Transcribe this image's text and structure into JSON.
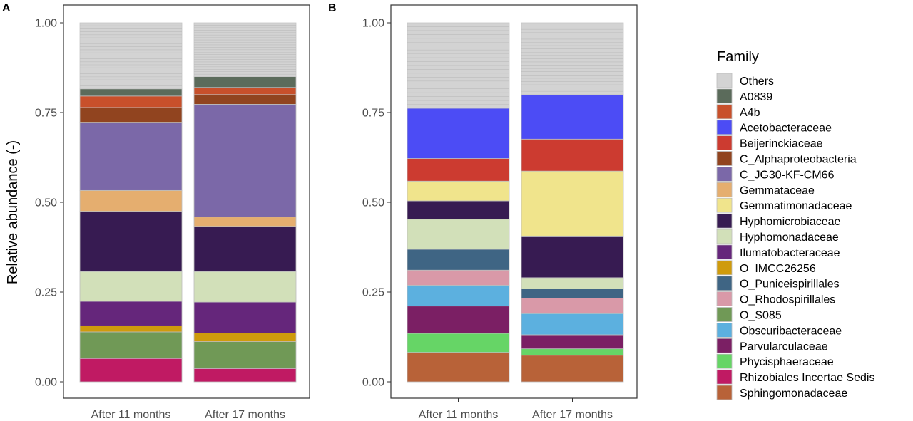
{
  "panels": [
    {
      "letter": "A"
    },
    {
      "letter": "B"
    }
  ],
  "legend": {
    "title": "Family",
    "entries": [
      {
        "label": "Others",
        "color": "#d3d3d3"
      },
      {
        "label": "A0839",
        "color": "#5b6b5b"
      },
      {
        "label": "A4b",
        "color": "#c8502b"
      },
      {
        "label": "Acetobacteraceae",
        "color": "#4c4cf5"
      },
      {
        "label": "Beijerinckiaceae",
        "color": "#cc3b30"
      },
      {
        "label": "C_Alphaproteobacteria",
        "color": "#91441f"
      },
      {
        "label": "C_JG30-KF-CM66",
        "color": "#7b68a8"
      },
      {
        "label": "Gemmataceae",
        "color": "#e5ae6f"
      },
      {
        "label": "Gemmatimonadaceae",
        "color": "#f0e48c"
      },
      {
        "label": "Hyphomicrobiaceae",
        "color": "#371b52"
      },
      {
        "label": "Hyphomonadaceae",
        "color": "#d2e0b9"
      },
      {
        "label": "Ilumatobacteraceae",
        "color": "#65267b"
      },
      {
        "label": "O_IMCC26256",
        "color": "#cf9b0c"
      },
      {
        "label": "O_Puniceispirillales",
        "color": "#3f6584"
      },
      {
        "label": "O_Rhodospirillales",
        "color": "#d999a8"
      },
      {
        "label": "O_S085",
        "color": "#709956"
      },
      {
        "label": "Obscuribacteraceae",
        "color": "#5cb0df"
      },
      {
        "label": "Parvularculaceae",
        "color": "#7b1f64"
      },
      {
        "label": "Phycisphaeraceae",
        "color": "#66d566"
      },
      {
        "label": "Rhizobiales Incertae Sedis",
        "color": "#c01a63"
      },
      {
        "label": "Sphingomonadaceae",
        "color": "#b86238"
      }
    ]
  },
  "chart_data": [
    {
      "type": "bar",
      "stacked": true,
      "panel": "A",
      "title": "",
      "xlabel": "",
      "ylabel": "Relative abundance (-)",
      "ylim": [
        0,
        1
      ],
      "yticks": [
        "0.00",
        "0.25",
        "0.50",
        "0.75",
        "1.00"
      ],
      "grid": false,
      "categories": [
        "After 11 months",
        "After 17 months"
      ],
      "series": [
        {
          "name": "Rhizobiales Incertae Sedis",
          "values": [
            0.065,
            0.037
          ]
        },
        {
          "name": "O_S085",
          "values": [
            0.074,
            0.075
          ]
        },
        {
          "name": "O_IMCC26256",
          "values": [
            0.017,
            0.024
          ]
        },
        {
          "name": "Ilumatobacteraceae",
          "values": [
            0.068,
            0.086
          ]
        },
        {
          "name": "Hyphomonadaceae",
          "values": [
            0.083,
            0.085
          ]
        },
        {
          "name": "Hyphomicrobiaceae",
          "values": [
            0.168,
            0.126
          ]
        },
        {
          "name": "Gemmataceae",
          "values": [
            0.058,
            0.026
          ]
        },
        {
          "name": "C_JG30-KF-CM66",
          "values": [
            0.19,
            0.314
          ]
        },
        {
          "name": "C_Alphaproteobacteria",
          "values": [
            0.041,
            0.027
          ]
        },
        {
          "name": "A4b",
          "values": [
            0.032,
            0.02
          ]
        },
        {
          "name": "A0839",
          "values": [
            0.02,
            0.03
          ]
        },
        {
          "name": "Others",
          "values": [
            0.184,
            0.15
          ]
        }
      ]
    },
    {
      "type": "bar",
      "stacked": true,
      "panel": "B",
      "title": "",
      "xlabel": "",
      "ylabel": "",
      "ylim": [
        0,
        1
      ],
      "yticks": [
        "0.00",
        "0.25",
        "0.50",
        "0.75",
        "1.00"
      ],
      "grid": false,
      "categories": [
        "After 11 months",
        "After 17 months"
      ],
      "series": [
        {
          "name": "Sphingomonadaceae",
          "values": [
            0.082,
            0.074
          ]
        },
        {
          "name": "Phycisphaeraceae",
          "values": [
            0.053,
            0.018
          ]
        },
        {
          "name": "Parvularculaceae",
          "values": [
            0.076,
            0.039
          ]
        },
        {
          "name": "Obscuribacteraceae",
          "values": [
            0.058,
            0.059
          ]
        },
        {
          "name": "O_Rhodospirillales",
          "values": [
            0.042,
            0.043
          ]
        },
        {
          "name": "O_Puniceispirillales",
          "values": [
            0.058,
            0.026
          ]
        },
        {
          "name": "Hyphomonadaceae",
          "values": [
            0.084,
            0.031
          ]
        },
        {
          "name": "Hyphomicrobiaceae",
          "values": [
            0.051,
            0.116
          ]
        },
        {
          "name": "Gemmatimonadaceae",
          "values": [
            0.055,
            0.181
          ]
        },
        {
          "name": "Beijerinckiaceae",
          "values": [
            0.063,
            0.089
          ]
        },
        {
          "name": "Acetobacteraceae",
          "values": [
            0.14,
            0.124
          ]
        },
        {
          "name": "Others",
          "values": [
            0.238,
            0.2
          ]
        }
      ]
    }
  ]
}
